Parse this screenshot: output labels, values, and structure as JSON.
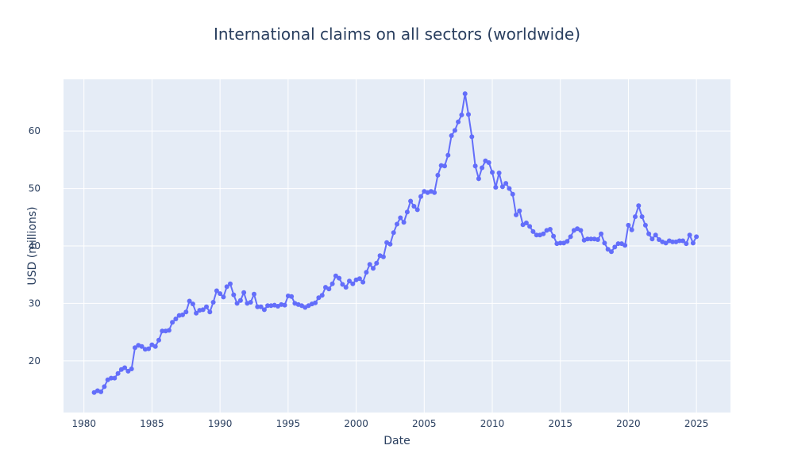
{
  "chart_data": {
    "type": "line",
    "title": "International claims on all sectors (worldwide)",
    "xlabel": "Date",
    "ylabel": "USD (millions)",
    "xlim": [
      1978.5,
      2027.5
    ],
    "ylim": [
      11,
      69
    ],
    "x_ticks": [
      1980,
      1985,
      1990,
      1995,
      2000,
      2005,
      2010,
      2015,
      2020,
      2025
    ],
    "x_tick_labels": [
      "1980",
      "1985",
      "1990",
      "1995",
      "2000",
      "2005",
      "2010",
      "2015",
      "2020",
      "2025"
    ],
    "y_ticks": [
      20,
      30,
      40,
      50,
      60
    ],
    "y_tick_labels": [
      "20",
      "30",
      "40",
      "50",
      "60"
    ],
    "grid": true,
    "legend": "none",
    "line_color": "#636efa",
    "plot_bg": "#e5ecf6",
    "series": [
      {
        "x": [
          1980.75,
          1981.0,
          1981.25,
          1981.5,
          1981.75,
          1982.0,
          1982.25,
          1982.5,
          1982.75,
          1983.0,
          1983.25,
          1983.5,
          1983.75,
          1984.0,
          1984.25,
          1984.5,
          1984.75,
          1985.0,
          1985.25,
          1985.5,
          1985.75,
          1986.0,
          1986.25,
          1986.5,
          1986.75,
          1987.0,
          1987.25,
          1987.5,
          1987.75,
          1988.0,
          1988.25,
          1988.5,
          1988.75,
          1989.0,
          1989.25,
          1989.5,
          1989.75,
          1990.0,
          1990.25,
          1990.5,
          1990.75,
          1991.0,
          1991.25,
          1991.5,
          1991.75,
          1992.0,
          1992.25,
          1992.5,
          1992.75,
          1993.0,
          1993.25,
          1993.5,
          1993.75,
          1994.0,
          1994.25,
          1994.5,
          1994.75,
          1995.0,
          1995.25,
          1995.5,
          1995.75,
          1996.0,
          1996.25,
          1996.5,
          1996.75,
          1997.0,
          1997.25,
          1997.5,
          1997.75,
          1998.0,
          1998.25,
          1998.5,
          1998.75,
          1999.0,
          1999.25,
          1999.5,
          1999.75,
          2000.0,
          2000.25,
          2000.5,
          2000.75,
          2001.0,
          2001.25,
          2001.5,
          2001.75,
          2002.0,
          2002.25,
          2002.5,
          2002.75,
          2003.0,
          2003.25,
          2003.5,
          2003.75,
          2004.0,
          2004.25,
          2004.5,
          2004.75,
          2005.0,
          2005.25,
          2005.5,
          2005.75,
          2006.0,
          2006.25,
          2006.5,
          2006.75,
          2007.0,
          2007.25,
          2007.5,
          2007.75,
          2008.0,
          2008.25,
          2008.5,
          2008.75,
          2009.0,
          2009.25,
          2009.5,
          2009.75,
          2010.0,
          2010.25,
          2010.5,
          2010.75,
          2011.0,
          2011.25,
          2011.5,
          2011.75,
          2012.0,
          2012.25,
          2012.5,
          2012.75,
          2013.0,
          2013.25,
          2013.5,
          2013.75,
          2014.0,
          2014.25,
          2014.5,
          2014.75,
          2015.0,
          2015.25,
          2015.5,
          2015.75,
          2016.0,
          2016.25,
          2016.5,
          2016.75,
          2017.0,
          2017.25,
          2017.5,
          2017.75,
          2018.0,
          2018.25,
          2018.5,
          2018.75,
          2019.0,
          2019.25,
          2019.5,
          2019.75,
          2020.0,
          2020.25,
          2020.5,
          2020.75,
          2021.0,
          2021.25,
          2021.5,
          2021.75,
          2022.0,
          2022.25,
          2022.5,
          2022.75,
          2023.0,
          2023.25,
          2023.5,
          2023.75,
          2024.0,
          2024.25,
          2024.5,
          2024.75,
          2025.0
        ],
        "y": [
          14.5,
          14.8,
          14.6,
          15.5,
          16.7,
          17.0,
          17.0,
          17.8,
          18.5,
          18.8,
          18.2,
          18.6,
          22.3,
          22.7,
          22.5,
          22.0,
          22.1,
          22.8,
          22.5,
          23.6,
          25.2,
          25.2,
          25.3,
          26.7,
          27.3,
          27.9,
          28.0,
          28.5,
          30.4,
          29.9,
          28.3,
          28.8,
          28.9,
          29.4,
          28.5,
          30.2,
          32.2,
          31.7,
          31.1,
          32.9,
          33.4,
          31.5,
          30.0,
          30.5,
          31.9,
          30.0,
          30.2,
          31.6,
          29.4,
          29.4,
          28.9,
          29.6,
          29.6,
          29.7,
          29.5,
          29.8,
          29.7,
          31.3,
          31.2,
          30.0,
          29.8,
          29.6,
          29.3,
          29.6,
          29.9,
          30.1,
          31.0,
          31.4,
          32.8,
          32.5,
          33.4,
          34.8,
          34.4,
          33.3,
          32.8,
          33.9,
          33.4,
          34.1,
          34.3,
          33.7,
          35.4,
          36.8,
          36.1,
          37.0,
          38.3,
          38.1,
          40.6,
          40.3,
          42.3,
          43.8,
          44.9,
          44.1,
          45.9,
          47.8,
          46.9,
          46.3,
          48.6,
          49.5,
          49.3,
          49.5,
          49.3,
          52.3,
          54.0,
          53.9,
          55.8,
          59.2,
          60.1,
          61.6,
          62.8,
          66.5,
          62.9,
          59.0,
          53.9,
          51.7,
          53.6,
          54.8,
          54.5,
          52.8,
          50.2,
          52.7,
          50.3,
          50.9,
          50.0,
          49.0,
          45.4,
          46.1,
          43.7,
          44.0,
          43.4,
          42.5,
          41.9,
          41.9,
          42.1,
          42.7,
          42.9,
          41.7,
          40.4,
          40.5,
          40.5,
          40.8,
          41.6,
          42.7,
          43.0,
          42.7,
          41.0,
          41.2,
          41.2,
          41.2,
          41.1,
          42.1,
          40.5,
          39.4,
          39.0,
          39.8,
          40.4,
          40.4,
          40.1,
          43.6,
          42.8,
          45.1,
          47.0,
          45.1,
          43.6,
          42.1,
          41.2,
          41.9,
          41.1,
          40.7,
          40.5,
          40.9,
          40.7,
          40.7,
          40.9,
          40.9,
          40.4,
          41.9,
          40.5,
          41.6
        ]
      }
    ]
  }
}
